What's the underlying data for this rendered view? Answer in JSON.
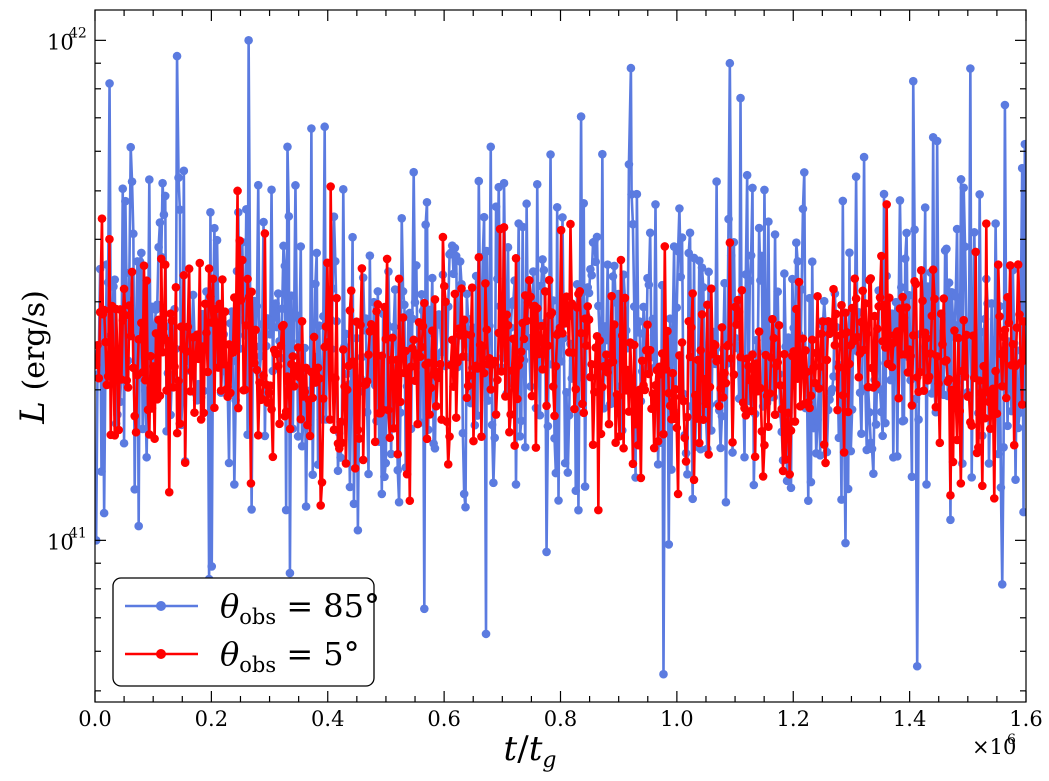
{
  "chart_data": {
    "type": "line",
    "title": "",
    "xlabel": "t/t_g",
    "ylabel": "L (erg/s)",
    "x_scale_label": "×10^6",
    "xlim": [
      0.0,
      1.6
    ],
    "ylim": [
      4.75e+40,
      1.15e+42
    ],
    "yscale": "log",
    "xticks": [
      0.0,
      0.2,
      0.4,
      0.6,
      0.8,
      1.0,
      1.2,
      1.4,
      1.6
    ],
    "xtick_labels": [
      "0.0",
      "0.2",
      "0.4",
      "0.6",
      "0.8",
      "1.0",
      "1.2",
      "1.4",
      "1.6"
    ],
    "ytick_labels": [
      {
        "base": "10",
        "exp": "41",
        "value": 1e+41
      },
      {
        "base": "10",
        "exp": "42",
        "value": 1e+42
      }
    ],
    "legend": {
      "position": "lower-left",
      "entries": [
        {
          "series": 0,
          "symbol": "θ",
          "sub": "obs",
          "rest": " = 85°"
        },
        {
          "series": 1,
          "symbol": "θ",
          "sub": "obs",
          "rest": " = 5°"
        }
      ]
    },
    "series": [
      {
        "name": "θobs = 85°",
        "color": "#5b7be0",
        "points": 700,
        "x_range": [
          0.002,
          1.598
        ],
        "baseline_log10": 41.4,
        "noise_log10": 0.17,
        "notable_points": [
          {
            "x": 0.002,
            "y": 1e+41
          },
          {
            "x": 0.025,
            "y": 8.2e+41
          },
          {
            "x": 0.141,
            "y": 9.3e+41
          },
          {
            "x": 0.264,
            "y": 1e+42
          },
          {
            "x": 0.335,
            "y": 8.6e+40
          },
          {
            "x": 0.672,
            "y": 6.5e+40
          },
          {
            "x": 0.977,
            "y": 5.4e+40
          },
          {
            "x": 0.921,
            "y": 8.8e+41
          },
          {
            "x": 1.091,
            "y": 9e+41
          },
          {
            "x": 1.413,
            "y": 5.6e+40
          },
          {
            "x": 1.598,
            "y": 6.2e+41
          }
        ]
      },
      {
        "name": "θobs = 5°",
        "color": "#ff0000",
        "points": 700,
        "x_range": [
          0.002,
          1.598
        ],
        "baseline_log10": 41.36,
        "noise_log10": 0.1,
        "notable_points": [
          {
            "x": 0.012,
            "y": 4.4e+41
          },
          {
            "x": 0.245,
            "y": 5e+41
          },
          {
            "x": 0.405,
            "y": 5.1e+41
          },
          {
            "x": 0.541,
            "y": 1.2e+41
          },
          {
            "x": 0.268,
            "y": 1.3e+41
          },
          {
            "x": 1.488,
            "y": 1.3e+41
          }
        ]
      }
    ]
  }
}
